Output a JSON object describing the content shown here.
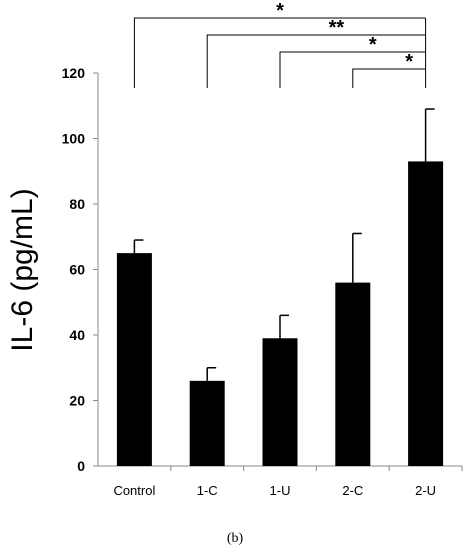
{
  "chart_data": {
    "type": "bar",
    "categories": [
      "Control",
      "1-C",
      "1-U",
      "2-C",
      "2-U"
    ],
    "values": [
      65,
      26,
      39,
      56,
      93
    ],
    "errors": [
      4,
      4,
      7,
      15,
      16
    ],
    "ylabel": "IL-6 (pg/mL)",
    "ylim": [
      0,
      120
    ],
    "yticks": [
      0,
      20,
      40,
      60,
      80,
      100,
      120
    ],
    "bar_color": "#000000",
    "grid": false,
    "significance": [
      {
        "from": "Control",
        "to": "2-U",
        "label": "*"
      },
      {
        "from": "1-C",
        "to": "2-U",
        "label": "**"
      },
      {
        "from": "1-U",
        "to": "2-U",
        "label": "*"
      },
      {
        "from": "2-C",
        "to": "2-U",
        "label": "*"
      }
    ]
  },
  "caption": "(b)"
}
